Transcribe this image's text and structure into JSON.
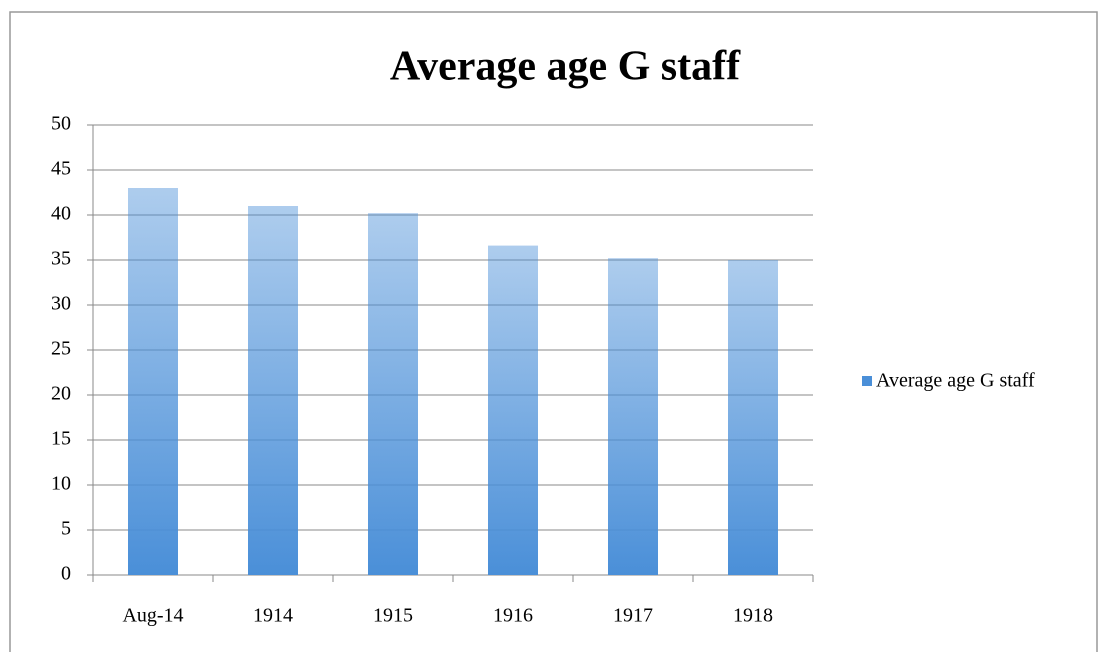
{
  "chart_data": {
    "type": "bar",
    "title": "Average age G staff",
    "categories": [
      "Aug-14",
      "1914",
      "1915",
      "1916",
      "1917",
      "1918"
    ],
    "series": [
      {
        "name": "Average age G staff",
        "color": "#4a8fd8",
        "values": [
          43,
          41,
          40.2,
          36.6,
          35.2,
          35
        ]
      }
    ],
    "ylim": [
      0,
      50
    ],
    "yticks": [
      0,
      5,
      10,
      15,
      20,
      25,
      30,
      35,
      40,
      45,
      50
    ],
    "grid": true,
    "legend": "right"
  }
}
